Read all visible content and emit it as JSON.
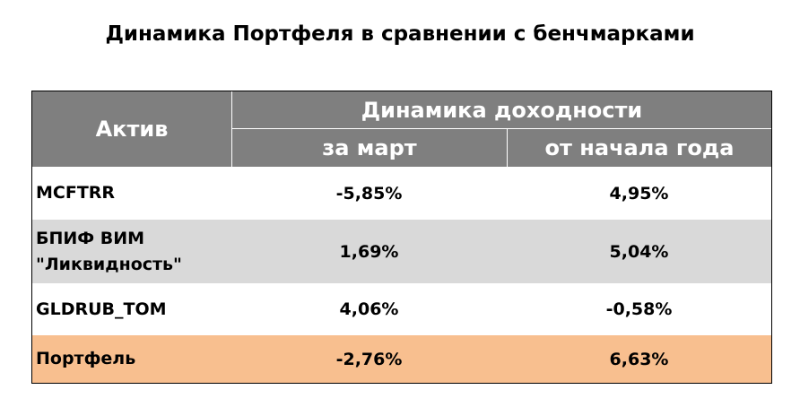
{
  "title": "Динамика Портфеля в сравнении с бенчмарками",
  "table": {
    "header": {
      "asset": "Актив",
      "group": "Динамика доходности",
      "month": "за март",
      "ytd": "от начала года"
    },
    "rows": [
      [
        "MCFTRR",
        "-5,85%",
        "4,95%"
      ],
      [
        "БПИФ ВИМ \"Ликвидность\"",
        "1,69%",
        "5,04%"
      ],
      [
        "GLDRUB_TOM",
        "4,06%",
        "-0,58%"
      ],
      [
        "Портфель",
        "-2,76%",
        "6,63%"
      ]
    ]
  }
}
